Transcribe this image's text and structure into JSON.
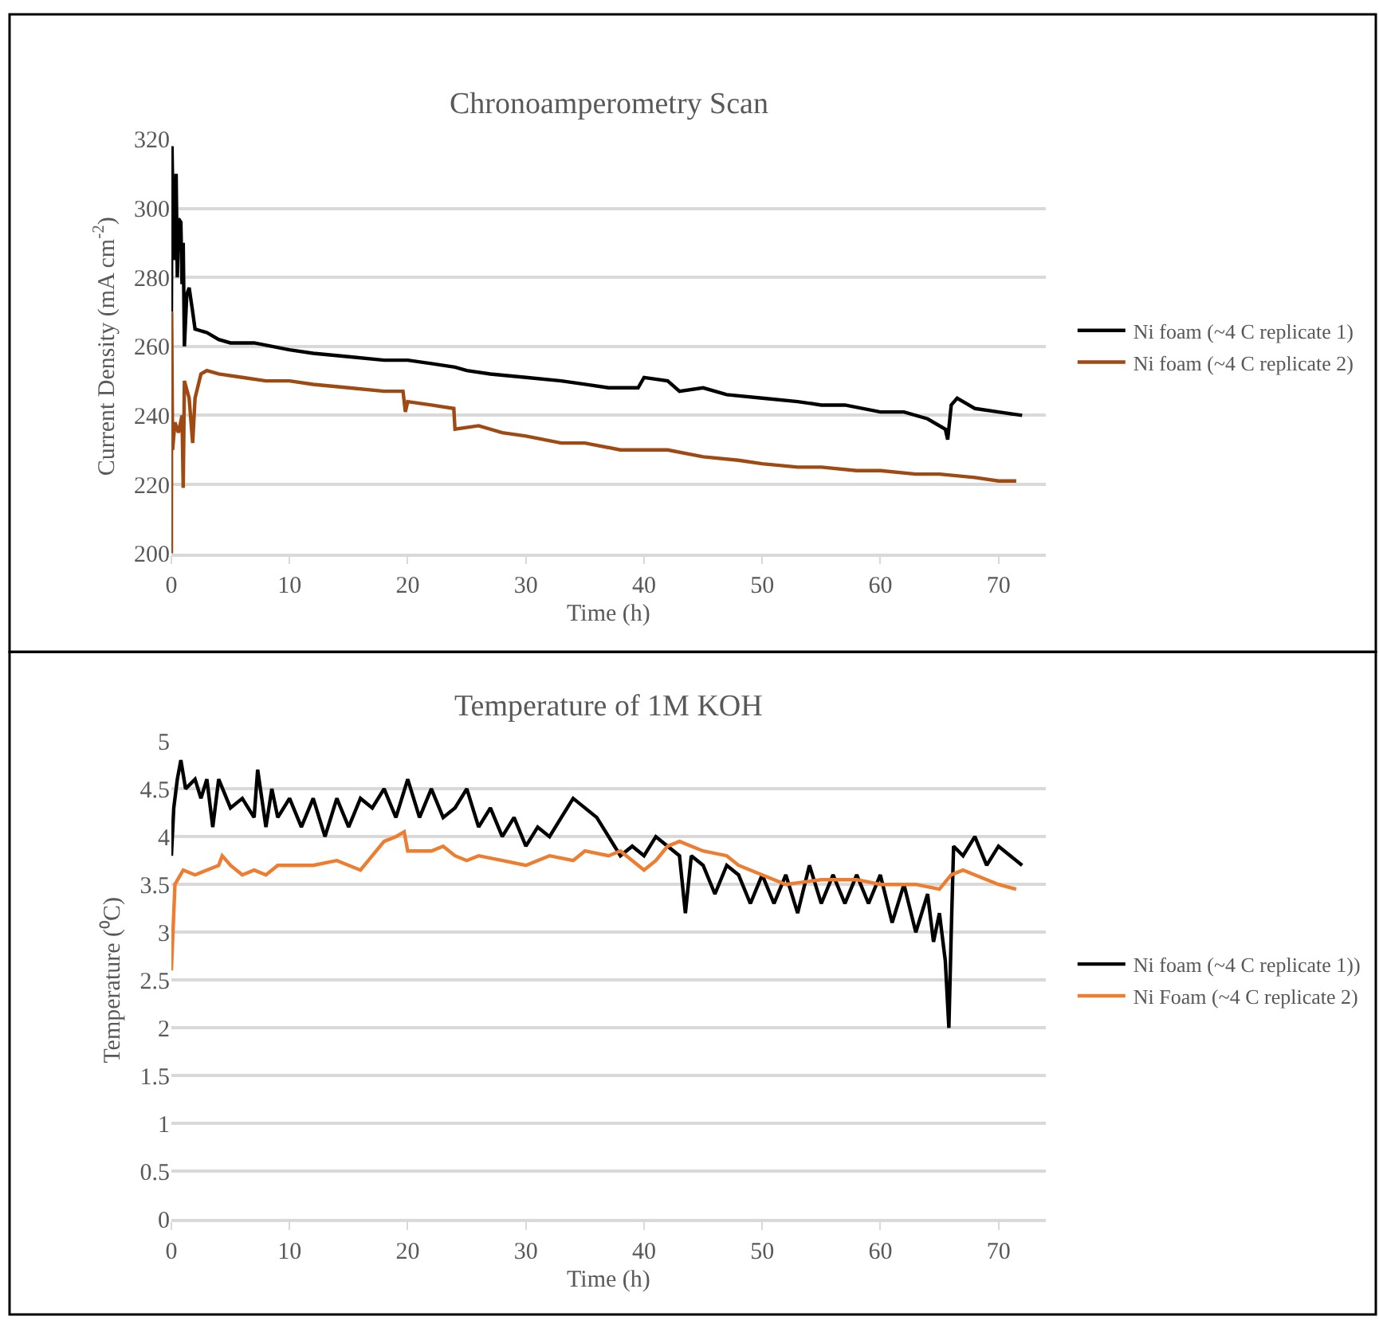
{
  "chart_data": [
    {
      "type": "line",
      "title": "Chronoamperometry Scan",
      "xlabel": "Time (h)",
      "ylabel": "Current Density (mA cm$^{-2}$)",
      "xlim": [
        0,
        74
      ],
      "xticks": [
        0,
        10,
        20,
        30,
        40,
        50,
        60,
        70
      ],
      "ylim": [
        200,
        320
      ],
      "yticks": [
        200,
        220,
        240,
        260,
        280,
        300,
        320
      ],
      "grid": "y",
      "legend": "right",
      "marker": "none",
      "line_style": "solid",
      "series": [
        {
          "name": "Ni foam (~4 C replicate 1)",
          "color": "#000000",
          "x": [
            0,
            0.05,
            0.2,
            0.4,
            0.5,
            0.6,
            0.8,
            0.9,
            1.0,
            1.1,
            1.3,
            1.5,
            1.8,
            2,
            3,
            4,
            5,
            7,
            10,
            12,
            15,
            18,
            20,
            22,
            24,
            25,
            27,
            30,
            33,
            35,
            37,
            39.5,
            40,
            42,
            43,
            45,
            47,
            50,
            53,
            55,
            57,
            60,
            62,
            64,
            65.5,
            65.7,
            66,
            66.5,
            68,
            70,
            72
          ],
          "values": [
            270,
            318,
            285,
            310,
            280,
            297,
            296,
            278,
            290,
            260,
            275,
            277,
            270,
            265,
            264,
            262,
            261,
            261,
            259,
            258,
            257,
            256,
            256,
            255,
            254,
            253,
            252,
            251,
            250,
            249,
            248,
            248,
            251,
            250,
            247,
            248,
            246,
            245,
            244,
            243,
            243,
            241,
            241,
            239,
            236,
            233,
            243,
            245,
            242,
            241,
            240
          ]
        },
        {
          "name": "Ni foam (~4 C replicate 2)",
          "color": "#9e4a12",
          "x": [
            0,
            0.02,
            0.1,
            0.3,
            0.6,
            0.9,
            1.0,
            1.1,
            1.5,
            1.8,
            2.0,
            2.5,
            3,
            4,
            6,
            8,
            10,
            12,
            15,
            18,
            19.6,
            19.8,
            20,
            22,
            23.9,
            24,
            26,
            28,
            30,
            33,
            35,
            38,
            40,
            42,
            45,
            48,
            50,
            53,
            55,
            58,
            60,
            63,
            65,
            68,
            70,
            71.5
          ],
          "values": [
            200,
            270,
            230,
            238,
            235,
            240,
            219,
            250,
            245,
            232,
            245,
            252,
            253,
            252,
            251,
            250,
            250,
            249,
            248,
            247,
            247,
            241,
            244,
            243,
            242,
            236,
            237,
            235,
            234,
            232,
            232,
            230,
            230,
            230,
            228,
            227,
            226,
            225,
            225,
            224,
            224,
            223,
            223,
            222,
            221,
            221
          ]
        }
      ]
    },
    {
      "type": "line",
      "title": "Temperature of 1M KOH",
      "xlabel": "Time (h)",
      "ylabel": "Temperature (⁰C)",
      "xlim": [
        0,
        74
      ],
      "xticks": [
        0,
        10,
        20,
        30,
        40,
        50,
        60,
        70
      ],
      "ylim": [
        0,
        5
      ],
      "yticks": [
        0,
        0.5,
        1,
        1.5,
        2,
        2.5,
        3,
        3.5,
        4,
        4.5,
        5
      ],
      "grid": "y",
      "legend": "right",
      "marker": "none",
      "line_style": "solid",
      "series": [
        {
          "name": "Ni foam (~4 C replicate 1))",
          "color": "#000000",
          "x": [
            0,
            0.2,
            0.5,
            0.8,
            1.2,
            2,
            2.5,
            3,
            3.5,
            4,
            5,
            6,
            7,
            7.3,
            8,
            8.5,
            9,
            10,
            11,
            12,
            13,
            14,
            15,
            16,
            17,
            18,
            19,
            20,
            21,
            22,
            23,
            24,
            25,
            26,
            27,
            28,
            29,
            30,
            31,
            32,
            33,
            34,
            35,
            36,
            37,
            38,
            39,
            40,
            41,
            42,
            43,
            43.5,
            44,
            45,
            46,
            47,
            48,
            49,
            50,
            51,
            52,
            53,
            54,
            55,
            56,
            57,
            58,
            59,
            60,
            61,
            62,
            63,
            64,
            64.5,
            65,
            65.5,
            65.8,
            66,
            66.2,
            67,
            68,
            69,
            70,
            71,
            72
          ],
          "values": [
            3.8,
            4.3,
            4.6,
            4.8,
            4.5,
            4.6,
            4.4,
            4.6,
            4.1,
            4.6,
            4.3,
            4.4,
            4.2,
            4.7,
            4.1,
            4.5,
            4.2,
            4.4,
            4.1,
            4.4,
            4.0,
            4.4,
            4.1,
            4.4,
            4.3,
            4.5,
            4.2,
            4.6,
            4.2,
            4.5,
            4.2,
            4.3,
            4.5,
            4.1,
            4.3,
            4.0,
            4.2,
            3.9,
            4.1,
            4.0,
            4.2,
            4.4,
            4.3,
            4.2,
            4.0,
            3.8,
            3.9,
            3.8,
            4.0,
            3.9,
            3.8,
            3.2,
            3.8,
            3.7,
            3.4,
            3.7,
            3.6,
            3.3,
            3.6,
            3.3,
            3.6,
            3.2,
            3.7,
            3.3,
            3.6,
            3.3,
            3.6,
            3.3,
            3.6,
            3.1,
            3.5,
            3.0,
            3.4,
            2.9,
            3.2,
            2.7,
            2.0,
            3.0,
            3.9,
            3.8,
            4.0,
            3.7,
            3.9,
            3.8,
            3.7
          ]
        },
        {
          "name": "Ni Foam (~4 C replicate 2)",
          "color": "#ed7d31",
          "x": [
            0,
            0.3,
            1,
            2,
            3,
            4,
            4.3,
            5,
            6,
            7,
            8,
            9,
            10,
            12,
            14,
            16,
            17,
            18,
            19,
            19.7,
            20,
            22,
            23,
            24,
            25,
            26,
            28,
            30,
            32,
            34,
            35,
            37,
            38,
            40,
            41,
            42,
            43,
            45,
            47,
            48,
            50,
            52,
            55,
            58,
            60,
            63,
            65,
            66,
            67,
            68,
            70,
            71.5
          ],
          "values": [
            2.6,
            3.5,
            3.65,
            3.6,
            3.65,
            3.7,
            3.8,
            3.7,
            3.6,
            3.65,
            3.6,
            3.7,
            3.7,
            3.7,
            3.75,
            3.65,
            3.8,
            3.95,
            4.0,
            4.05,
            3.85,
            3.85,
            3.9,
            3.8,
            3.75,
            3.8,
            3.75,
            3.7,
            3.8,
            3.75,
            3.85,
            3.8,
            3.85,
            3.65,
            3.75,
            3.9,
            3.95,
            3.85,
            3.8,
            3.7,
            3.6,
            3.5,
            3.55,
            3.55,
            3.5,
            3.5,
            3.45,
            3.6,
            3.65,
            3.6,
            3.5,
            3.45
          ]
        }
      ]
    }
  ]
}
